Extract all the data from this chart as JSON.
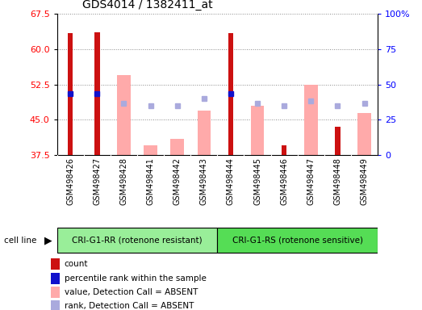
{
  "title": "GDS4014 / 1382411_at",
  "samples": [
    "GSM498426",
    "GSM498427",
    "GSM498428",
    "GSM498441",
    "GSM498442",
    "GSM498443",
    "GSM498444",
    "GSM498445",
    "GSM498446",
    "GSM498447",
    "GSM498448",
    "GSM498449"
  ],
  "group1_indices": [
    0,
    1,
    2,
    3,
    4,
    5
  ],
  "group2_indices": [
    6,
    7,
    8,
    9,
    10,
    11
  ],
  "group1_label": "CRI-G1-RR (rotenone resistant)",
  "group2_label": "CRI-G1-RS (rotenone sensitive)",
  "group1_color": "#99ee99",
  "group2_color": "#55dd55",
  "ylim_left": [
    37.5,
    67.5
  ],
  "ylim_right": [
    0,
    100
  ],
  "yticks_left": [
    37.5,
    45.0,
    52.5,
    60.0,
    67.5
  ],
  "yticks_right": [
    0,
    25,
    50,
    75,
    100
  ],
  "ytick_right_labels": [
    "0",
    "25",
    "50",
    "75",
    "100%"
  ],
  "count_values": [
    63.5,
    63.6,
    null,
    null,
    null,
    null,
    63.5,
    null,
    39.5,
    null,
    43.5,
    null
  ],
  "rank_values": [
    50.5,
    50.5,
    null,
    null,
    null,
    null,
    50.5,
    null,
    null,
    null,
    null,
    null
  ],
  "value_absent": [
    null,
    null,
    54.5,
    39.5,
    41.0,
    47.0,
    null,
    48.0,
    null,
    52.5,
    null,
    46.5
  ],
  "rank_absent": [
    null,
    null,
    48.5,
    48.0,
    48.0,
    49.5,
    null,
    48.5,
    48.0,
    49.0,
    48.0,
    48.5
  ],
  "count_color": "#cc1111",
  "rank_color": "#1111cc",
  "value_absent_color": "#ffaaaa",
  "rank_absent_color": "#aaaadd",
  "plot_bg": "#ffffff",
  "tick_bg": "#cccccc",
  "legend_labels": [
    "count",
    "percentile rank within the sample",
    "value, Detection Call = ABSENT",
    "rank, Detection Call = ABSENT"
  ],
  "legend_colors": [
    "#cc1111",
    "#1111cc",
    "#ffaaaa",
    "#aaaadd"
  ]
}
